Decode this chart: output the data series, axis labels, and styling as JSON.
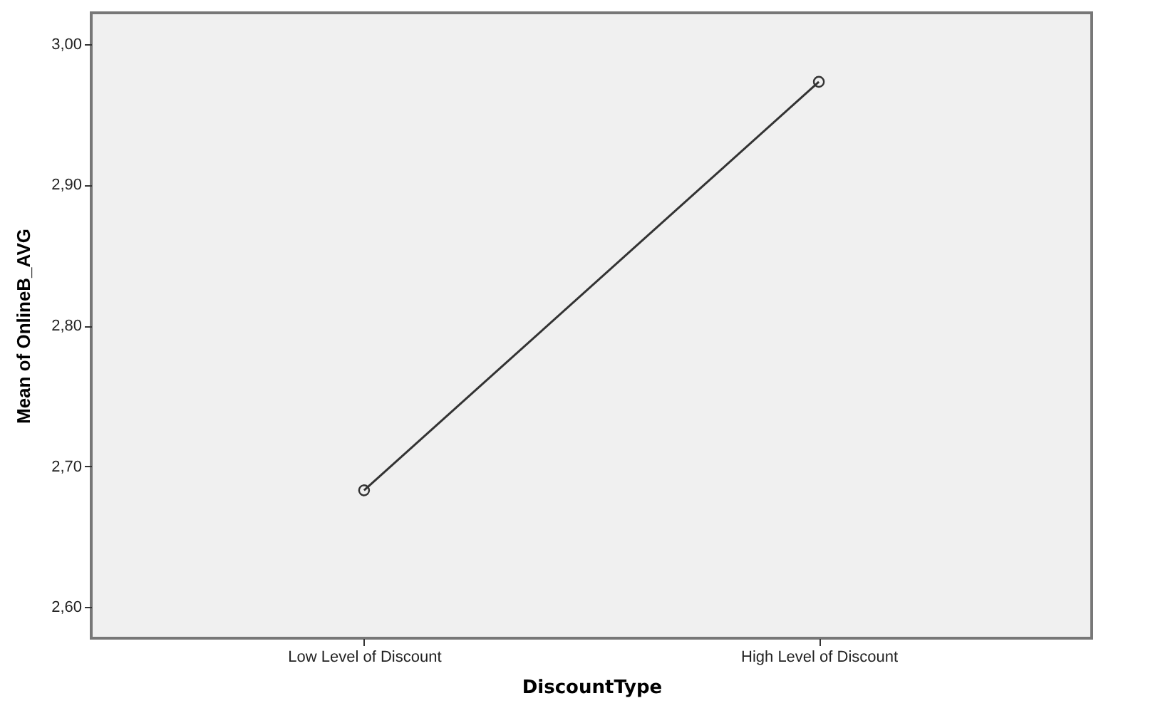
{
  "chart_data": {
    "type": "line",
    "xlabel": "DiscountType",
    "ylabel": "Mean of OnlineB_AVG",
    "categories": [
      "Low Level of Discount",
      "High Level of Discount"
    ],
    "series": [
      {
        "color": "#333333",
        "values": [
          2.683,
          2.973
        ]
      }
    ],
    "ylim": [
      2.578,
      3.022
    ],
    "yticks": [
      {
        "value": 2.6,
        "label": "2,60"
      },
      {
        "value": 2.7,
        "label": "2,70"
      },
      {
        "value": 2.8,
        "label": "2,80"
      },
      {
        "value": 2.9,
        "label": "2,90"
      },
      {
        "value": 3.0,
        "label": "3,00"
      }
    ],
    "marker": "circle",
    "line_style": "solid",
    "grid": false
  }
}
